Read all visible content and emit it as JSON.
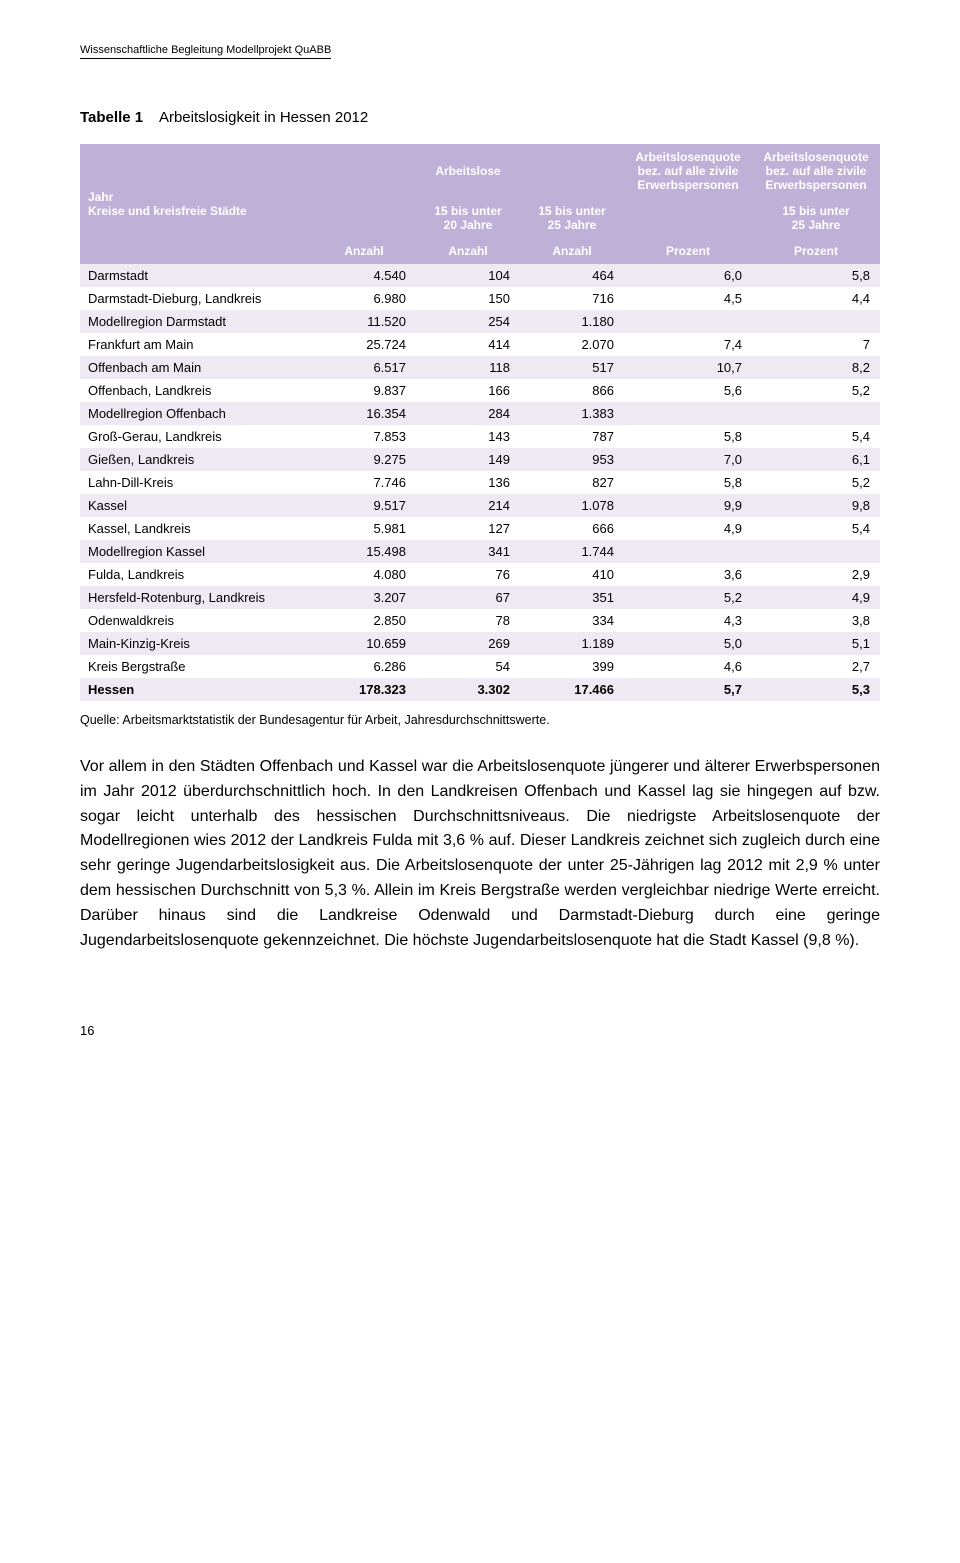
{
  "running_header": "Wissenschaftliche Begleitung Modellprojekt QuABB",
  "table_caption_bold": "Tabelle 1",
  "table_caption_rest": "Arbeitslosigkeit in Hessen 2012",
  "colors": {
    "header_bg": "#bfb0d7",
    "header_fg": "#ffffff",
    "row_even": "#efe9f4",
    "row_odd": "#ffffff",
    "text": "#000000"
  },
  "header": {
    "rowlabel_line1": "Jahr",
    "rowlabel_line2": "Kreise und kreisfreie Städte",
    "group_arbeitslose": "Arbeitslose",
    "quote1_l1": "Arbeitslosenquote",
    "quote1_l2": "bez. auf alle zivile",
    "quote1_l3": "Erwerbspersonen",
    "quote2_l1": "Arbeitslosenquote",
    "quote2_l2": "bez. auf alle zivile",
    "quote2_l3": "Erwerbspersonen",
    "sub_20": "15 bis unter\n20 Jahre",
    "sub_25": "15 bis unter\n25 Jahre",
    "sub_25b": "15 bis unter\n25 Jahre",
    "unit_anzahl": "Anzahl",
    "unit_prozent": "Prozent"
  },
  "rows": [
    {
      "label": "Darmstadt",
      "a": "4.540",
      "b": "104",
      "c": "464",
      "d": "6,0",
      "e": "5,8"
    },
    {
      "label": "Darmstadt-Dieburg, Landkreis",
      "a": "6.980",
      "b": "150",
      "c": "716",
      "d": "4,5",
      "e": "4,4"
    },
    {
      "label": "Modellregion Darmstadt",
      "a": "11.520",
      "b": "254",
      "c": "1.180",
      "d": "",
      "e": ""
    },
    {
      "label": "Frankfurt am Main",
      "a": "25.724",
      "b": "414",
      "c": "2.070",
      "d": "7,4",
      "e": "7"
    },
    {
      "label": "Offenbach am Main",
      "a": "6.517",
      "b": "118",
      "c": "517",
      "d": "10,7",
      "e": "8,2"
    },
    {
      "label": "Offenbach, Landkreis",
      "a": "9.837",
      "b": "166",
      "c": "866",
      "d": "5,6",
      "e": "5,2"
    },
    {
      "label": "Modellregion Offenbach",
      "a": "16.354",
      "b": "284",
      "c": "1.383",
      "d": "",
      "e": ""
    },
    {
      "label": "Groß-Gerau, Landkreis",
      "a": "7.853",
      "b": "143",
      "c": "787",
      "d": "5,8",
      "e": "5,4"
    },
    {
      "label": "Gießen, Landkreis",
      "a": "9.275",
      "b": "149",
      "c": "953",
      "d": "7,0",
      "e": "6,1"
    },
    {
      "label": "Lahn-Dill-Kreis",
      "a": "7.746",
      "b": "136",
      "c": "827",
      "d": "5,8",
      "e": "5,2"
    },
    {
      "label": "Kassel",
      "a": "9.517",
      "b": "214",
      "c": "1.078",
      "d": "9,9",
      "e": "9,8"
    },
    {
      "label": "Kassel, Landkreis",
      "a": "5.981",
      "b": "127",
      "c": "666",
      "d": "4,9",
      "e": "5,4"
    },
    {
      "label": "Modellregion Kassel",
      "a": "15.498",
      "b": "341",
      "c": "1.744",
      "d": "",
      "e": ""
    },
    {
      "label": "Fulda, Landkreis",
      "a": "4.080",
      "b": "76",
      "c": "410",
      "d": "3,6",
      "e": "2,9"
    },
    {
      "label": "Hersfeld-Rotenburg, Landkreis",
      "a": "3.207",
      "b": "67",
      "c": "351",
      "d": "5,2",
      "e": "4,9"
    },
    {
      "label": "Odenwaldkreis",
      "a": "2.850",
      "b": "78",
      "c": "334",
      "d": "4,3",
      "e": "3,8"
    },
    {
      "label": "Main-Kinzig-Kreis",
      "a": "10.659",
      "b": "269",
      "c": "1.189",
      "d": "5,0",
      "e": "5,1"
    },
    {
      "label": "Kreis Bergstraße",
      "a": "6.286",
      "b": "54",
      "c": "399",
      "d": "4,6",
      "e": "2,7"
    },
    {
      "label": "Hessen",
      "a": "178.323",
      "b": "3.302",
      "c": "17.466",
      "d": "5,7",
      "e": "5,3",
      "total": true
    }
  ],
  "source_note": "Quelle: Arbeitsmarktstatistik der Bundesagentur für Arbeit, Jahresdurchschnittswerte.",
  "body_text": "Vor allem in den Städten Offenbach und Kassel war die Arbeitslosenquote jüngerer und älterer Erwerbspersonen im Jahr 2012 überdurchschnittlich hoch. In den Landkreisen Offenbach und Kassel lag sie hingegen auf bzw. sogar leicht unterhalb des hessischen Durchschnittsniveaus. Die niedrigste Arbeitslosenquote der Modellregionen wies 2012 der Landkreis Fulda mit 3,6 % auf. Dieser Landkreis zeichnet sich zugleich durch eine sehr geringe Jugendarbeitslosigkeit aus. Die Arbeitslosenquote der unter 25-Jährigen lag 2012 mit 2,9 % unter dem hessischen Durchschnitt von 5,3 %. Allein im Kreis Bergstraße werden vergleichbar niedrige Werte erreicht. Darüber hinaus sind die Landkreise Odenwald und Darmstadt-Dieburg durch eine geringe Jugendarbeitslosenquote gekennzeichnet. Die höchste Jugendarbeitslosenquote hat die Stadt Kassel (9,8 %).",
  "page_number": "16"
}
